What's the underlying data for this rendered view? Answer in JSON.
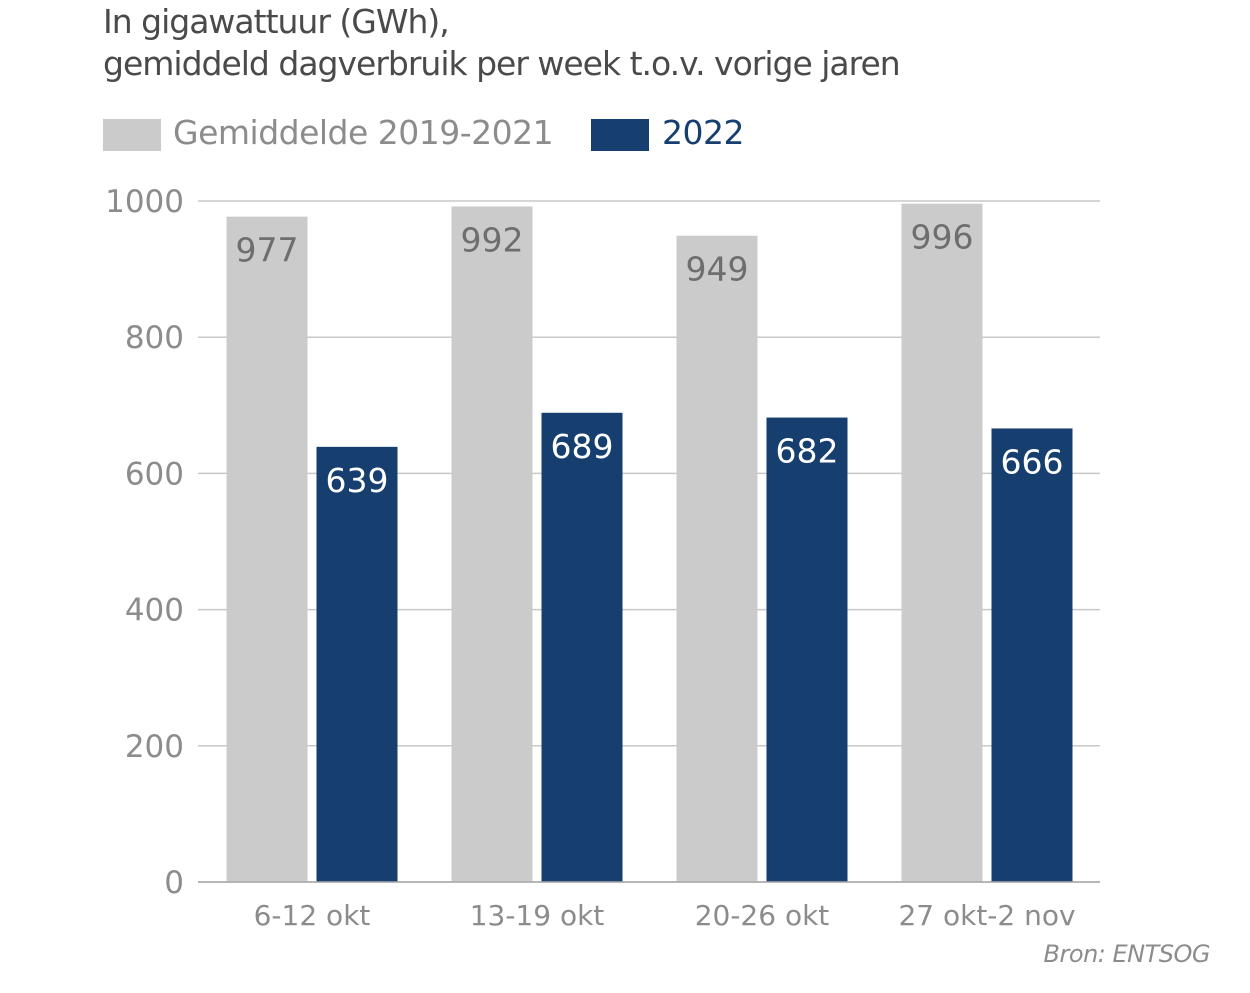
{
  "chart_data": {
    "type": "bar",
    "title": "In gigawattuur (GWh),",
    "subtitle": "gemiddeld dagverbruik per week t.o.v. vorige jaren",
    "xlabel": "",
    "ylabel": "",
    "ylim": [
      0,
      1000
    ],
    "yticks": [
      0,
      200,
      400,
      600,
      800,
      1000
    ],
    "grid": true,
    "legend_position": "top-left",
    "categories": [
      "6-12 okt",
      "13-19 okt",
      "20-26 okt",
      "27 okt-2 nov"
    ],
    "series": [
      {
        "name": "Gemiddelde 2019-2021",
        "color": "#cccbcb",
        "label_color": "#6e6e6e",
        "values": [
          977,
          992,
          949,
          996
        ]
      },
      {
        "name": "2022",
        "color": "#163f6f",
        "label_color": "#ffffff",
        "values": [
          639,
          689,
          682,
          666
        ]
      }
    ],
    "source": "Bron: ENTSOG"
  },
  "colors": {
    "title": "#4a4a4a",
    "axis_text": "#8c8c8c",
    "gridline": "#c8c8c8",
    "legend_avg_text": "#8c8c8c",
    "legend_2022_text": "#163f6f"
  }
}
